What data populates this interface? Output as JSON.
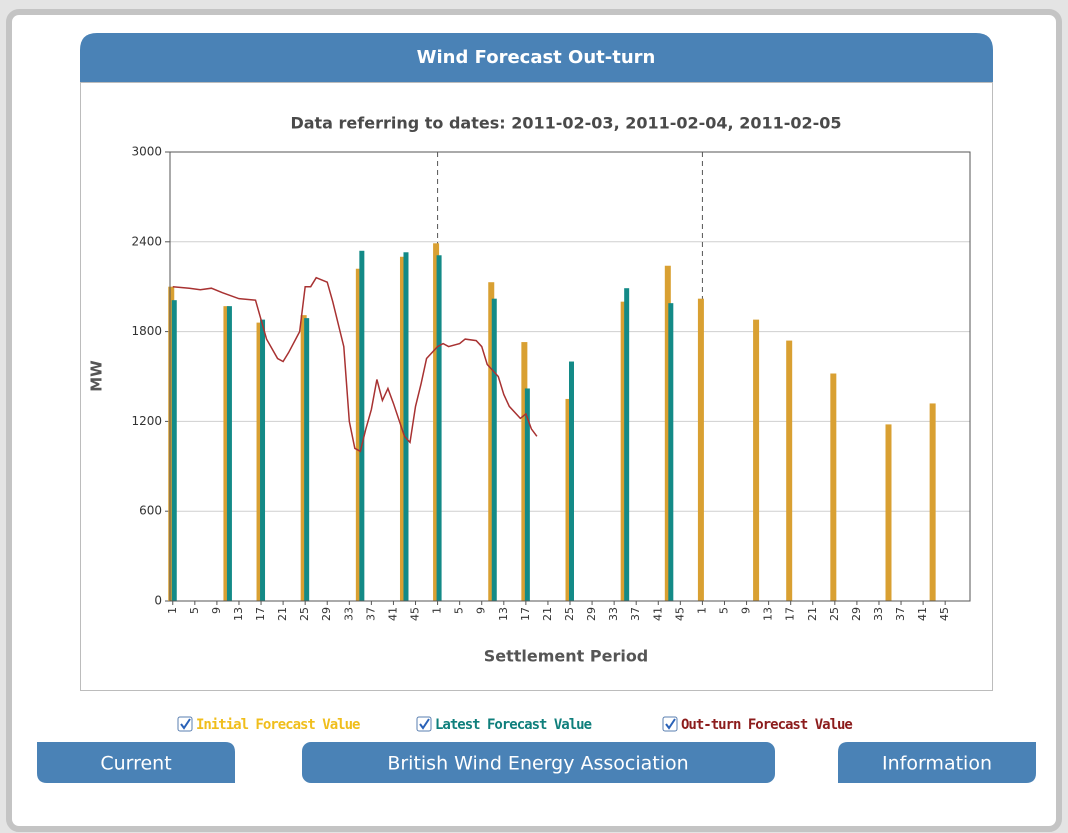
{
  "header": {
    "title": "Wind Forecast Out-turn"
  },
  "chart_data": {
    "type": "combo",
    "subtitle": "Data referring to dates: 2011-02-03, 2011-02-04, 2011-02-05",
    "ylabel": "MW",
    "xlabel": "Settlement Period",
    "xlim": [
      0.5,
      145.5
    ],
    "ylim": [
      0,
      3000
    ],
    "yticks": [
      0,
      600,
      1200,
      1800,
      2400,
      3000
    ],
    "xticks": [
      1,
      5,
      9,
      13,
      17,
      21,
      25,
      29,
      33,
      37,
      41,
      45,
      {
        "value": 49,
        "label": "1"
      },
      {
        "value": 53,
        "label": "5"
      },
      {
        "value": 57,
        "label": "9"
      },
      {
        "value": 61,
        "label": "13"
      },
      {
        "value": 65,
        "label": "17"
      },
      {
        "value": 69,
        "label": "21"
      },
      {
        "value": 73,
        "label": "25"
      },
      {
        "value": 77,
        "label": "29"
      },
      {
        "value": 81,
        "label": "33"
      },
      {
        "value": 85,
        "label": "37"
      },
      {
        "value": 89,
        "label": "41"
      },
      {
        "value": 93,
        "label": "45"
      },
      {
        "value": 97,
        "label": "1"
      },
      {
        "value": 101,
        "label": "5"
      },
      {
        "value": 105,
        "label": "9"
      },
      {
        "value": 109,
        "label": "13"
      },
      {
        "value": 113,
        "label": "17"
      },
      {
        "value": 117,
        "label": "21"
      },
      {
        "value": 121,
        "label": "25"
      },
      {
        "value": 125,
        "label": "29"
      },
      {
        "value": 129,
        "label": "33"
      },
      {
        "value": 133,
        "label": "37"
      },
      {
        "value": 137,
        "label": "41"
      },
      {
        "value": 141,
        "label": "45"
      }
    ],
    "day_dividers": [
      49,
      97
    ],
    "grid": true,
    "series": [
      {
        "name": "Initial Forecast Value",
        "type": "bar",
        "color": "#d9a032",
        "legend_color": "#f0be1c",
        "x": [
          1,
          11,
          17,
          25,
          35,
          43,
          49,
          59,
          65,
          73,
          83,
          91,
          97,
          107,
          113,
          121,
          131,
          139
        ],
        "values": [
          2100,
          1970,
          1860,
          1910,
          2220,
          2300,
          2390,
          2130,
          1730,
          1350,
          2000,
          2240,
          2020,
          1880,
          1740,
          1520,
          1180,
          1320
        ]
      },
      {
        "name": "Latest Forecast Value",
        "type": "bar",
        "color": "#138a87",
        "legend_color": "#0f7f7c",
        "x": [
          1,
          11,
          17,
          25,
          35,
          43,
          49,
          59,
          65,
          73,
          83,
          91
        ],
        "values": [
          2010,
          1970,
          1880,
          1890,
          2340,
          2330,
          2310,
          2020,
          1420,
          1600,
          2090,
          1990
        ]
      },
      {
        "name": "Out-turn Forecast Value",
        "type": "line",
        "color": "#a83232",
        "legend_color": "#8c1c1c",
        "x": [
          1,
          4,
          6,
          8,
          10,
          13,
          16,
          18,
          20,
          21,
          22,
          24,
          25,
          26,
          27,
          29,
          30,
          32,
          33,
          34,
          35,
          36,
          37,
          38,
          39,
          40,
          41,
          43,
          44,
          45,
          46,
          47,
          49,
          50,
          51,
          53,
          54,
          56,
          57,
          58,
          60,
          61,
          62,
          64,
          65,
          66,
          67
        ],
        "values": [
          2100,
          2090,
          2080,
          2090,
          2060,
          2020,
          2010,
          1750,
          1620,
          1600,
          1660,
          1800,
          2100,
          2100,
          2160,
          2130,
          2000,
          1700,
          1200,
          1020,
          1000,
          1150,
          1280,
          1480,
          1340,
          1420,
          1320,
          1100,
          1060,
          1300,
          1450,
          1620,
          1700,
          1720,
          1700,
          1720,
          1750,
          1740,
          1700,
          1580,
          1500,
          1380,
          1300,
          1220,
          1250,
          1150,
          1100
        ]
      }
    ]
  },
  "buttons": [
    "Current",
    "British Wind Energy Association",
    "Information"
  ]
}
